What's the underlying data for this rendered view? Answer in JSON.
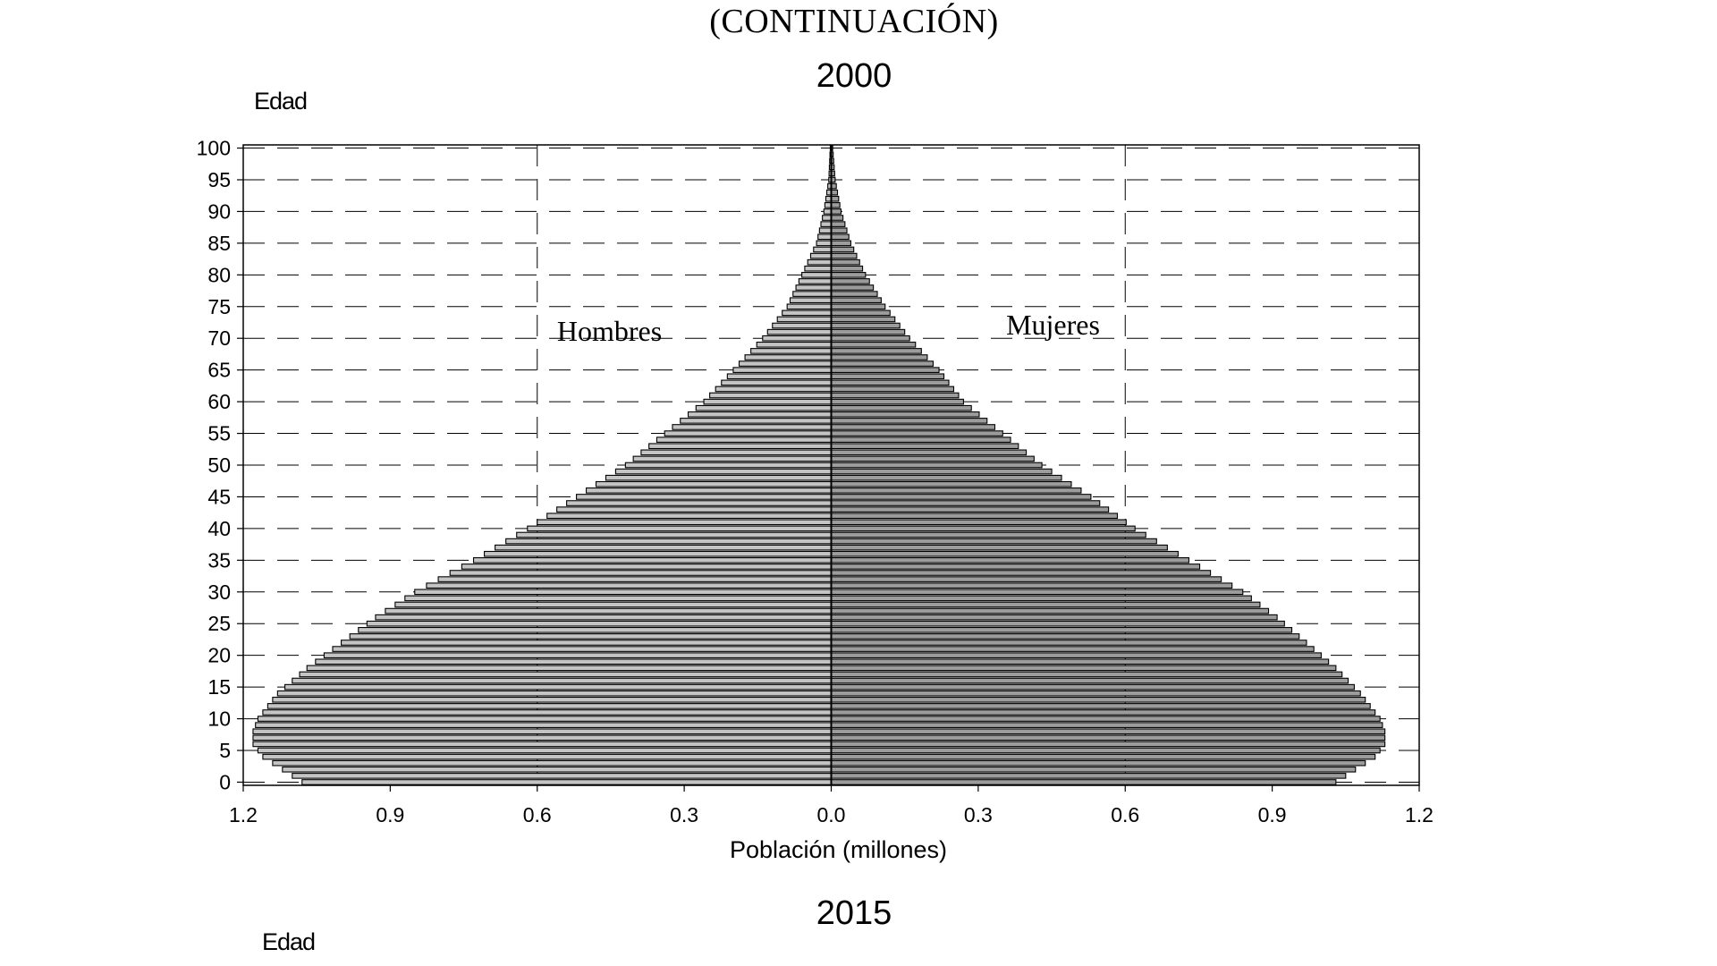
{
  "header": {
    "continuation": "(CONTINUACIÓN)",
    "year_top": "2000",
    "year_bottom": "2015",
    "age_label_top": "Edad",
    "age_label_bottom": "Edad"
  },
  "chart_data": {
    "type": "bar",
    "orientation": "horizontal-population-pyramid",
    "title": "2000",
    "ylabel": "Edad",
    "xlabel": "Población (millones)",
    "x_ticks": [
      "1.2",
      "0.9",
      "0.6",
      "0.3",
      "0.0",
      "0.3",
      "0.6",
      "0.9",
      "1.2"
    ],
    "y_ticks": [
      "0",
      "5",
      "10",
      "15",
      "20",
      "25",
      "30",
      "35",
      "40",
      "45",
      "50",
      "55",
      "60",
      "65",
      "70",
      "75",
      "80",
      "85",
      "90",
      "95",
      "100"
    ],
    "xlim": [
      -1.2,
      1.2
    ],
    "ylim": [
      0,
      100
    ],
    "grid": "dashed",
    "annotations": {
      "left": "Hombres",
      "right": "Mujeres"
    },
    "colors": {
      "hombres": "#c4c4c4",
      "mujeres": "#9c9c9c",
      "edge": "#000000"
    },
    "age_knots": [
      0,
      2,
      4,
      6,
      8,
      10,
      14,
      18,
      22,
      26,
      30,
      35,
      40,
      45,
      50,
      55,
      60,
      65,
      70,
      75,
      80,
      85,
      90,
      95,
      100
    ],
    "series": [
      {
        "name": "Hombres",
        "values": [
          1.08,
          1.12,
          1.16,
          1.18,
          1.18,
          1.17,
          1.13,
          1.07,
          1.0,
          0.93,
          0.85,
          0.73,
          0.62,
          0.52,
          0.42,
          0.34,
          0.26,
          0.2,
          0.14,
          0.09,
          0.06,
          0.03,
          0.015,
          0.005,
          0.002
        ]
      },
      {
        "name": "Mujeres",
        "values": [
          1.03,
          1.07,
          1.11,
          1.13,
          1.13,
          1.12,
          1.08,
          1.03,
          0.97,
          0.91,
          0.84,
          0.73,
          0.62,
          0.53,
          0.43,
          0.35,
          0.27,
          0.22,
          0.16,
          0.11,
          0.07,
          0.04,
          0.02,
          0.008,
          0.003
        ]
      }
    ]
  }
}
